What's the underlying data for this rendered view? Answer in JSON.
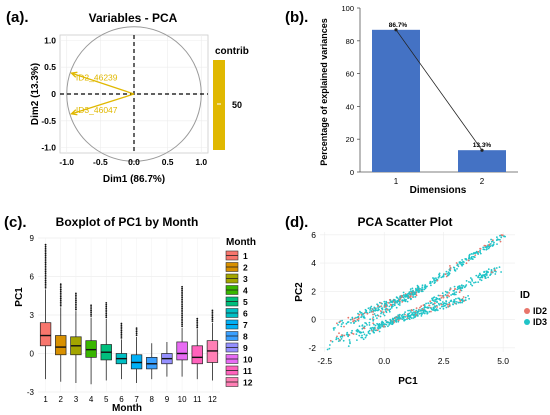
{
  "colors": {
    "arrow": "#e0b800",
    "bar": "#4472c4",
    "id2": "#e8756b",
    "id3": "#20c4c8",
    "month": [
      "#f8766d",
      "#d89000",
      "#a3a500",
      "#39b600",
      "#00bf7d",
      "#00bfc4",
      "#00b0f6",
      "#3aa0ff",
      "#9590ff",
      "#e76bf3",
      "#ff62bc",
      "#ff7fb5"
    ]
  },
  "panels": [
    {
      "label": "(a)."
    },
    {
      "label": "(b)."
    },
    {
      "label": "(c)."
    },
    {
      "label": "(d)."
    }
  ],
  "chart_data": [
    {
      "type": "scatter",
      "title": "Variables - PCA",
      "xlabel": "Dim1 (86.7%)",
      "ylabel": "Dim2 (13.3%)",
      "xlim": [
        -1.1,
        1.1
      ],
      "ylim": [
        -1.1,
        1.1
      ],
      "xticks": [
        "-1.0",
        "-0.5",
        "0.0",
        "0.5",
        "1.0"
      ],
      "yticks": [
        "-1.0",
        "-0.5",
        "0",
        "0.5",
        "1.0"
      ],
      "unit_circle": true,
      "arrows": [
        {
          "name": "ID2_46239",
          "x": -0.93,
          "y": 0.39
        },
        {
          "name": "ID3_46047",
          "x": -0.93,
          "y": -0.37
        }
      ],
      "legend": {
        "title": "contrib",
        "label": "50"
      }
    },
    {
      "type": "bar",
      "categories": [
        "1",
        "2"
      ],
      "values": [
        86.7,
        13.3
      ],
      "data_labels": [
        "86.7%",
        "13.3%"
      ],
      "xlabel": "Dimensions",
      "ylabel": "Percentage of explained variances",
      "ylim": [
        0,
        100
      ],
      "yticks": [
        "0",
        "20",
        "40",
        "60",
        "80",
        "100"
      ],
      "line_overlay": true
    },
    {
      "type": "bar",
      "subtype": "boxplot",
      "title": "Boxplot of PC1 by Month",
      "xlabel": "Month",
      "ylabel": "PC1",
      "ylim": [
        -3,
        9
      ],
      "yticks": [
        "-3",
        "0",
        "3",
        "6",
        "9"
      ],
      "categories": [
        "1",
        "2",
        "3",
        "4",
        "5",
        "6",
        "7",
        "8",
        "9",
        "10",
        "11",
        "12"
      ],
      "series": [
        {
          "values": [
            1.4,
            0.5,
            0.6,
            0.3,
            0.1,
            -0.4,
            -0.7,
            -0.8,
            -0.4,
            0.0,
            -0.3,
            0.2
          ]
        }
      ],
      "q1": [
        0.6,
        -0.1,
        -0.1,
        -0.3,
        -0.5,
        -0.8,
        -1.2,
        -1.2,
        -0.8,
        -0.5,
        -0.8,
        -0.7
      ],
      "q3": [
        2.4,
        1.4,
        1.3,
        1.0,
        0.7,
        0.0,
        -0.1,
        -0.3,
        0.0,
        0.9,
        0.6,
        1.0
      ],
      "whisker_low": [
        -2.0,
        -2.2,
        -2.3,
        -2.4,
        -2.1,
        -2.0,
        -2.3,
        -2.0,
        -1.8,
        -1.8,
        -2.0,
        -2.1
      ],
      "whisker_high": [
        5.0,
        3.6,
        3.3,
        2.8,
        2.7,
        1.1,
        1.3,
        0.8,
        0.9,
        2.0,
        1.9,
        2.4
      ],
      "outlier_max": [
        8.6,
        5.4,
        4.7,
        3.9,
        4.0,
        2.4,
        2.0,
        0.9,
        1.0,
        5.2,
        2.8,
        3.4
      ],
      "legend": {
        "title": "Month",
        "labels": [
          "1",
          "2",
          "3",
          "4",
          "5",
          "6",
          "7",
          "8",
          "9",
          "10",
          "11",
          "12"
        ]
      }
    },
    {
      "type": "scatter",
      "title": "PCA Scatter Plot",
      "xlabel": "PC1",
      "ylabel": "PC2",
      "xlim": [
        -2.7,
        5.5
      ],
      "ylim": [
        -2.3,
        6.2
      ],
      "xticks": [
        "-2.5",
        "0.0",
        "2.5",
        "5.0"
      ],
      "yticks": [
        "-2",
        "0",
        "2",
        "4",
        "6"
      ],
      "legend": {
        "title": "ID",
        "labels": [
          "ID2",
          "ID3"
        ]
      }
    }
  ]
}
